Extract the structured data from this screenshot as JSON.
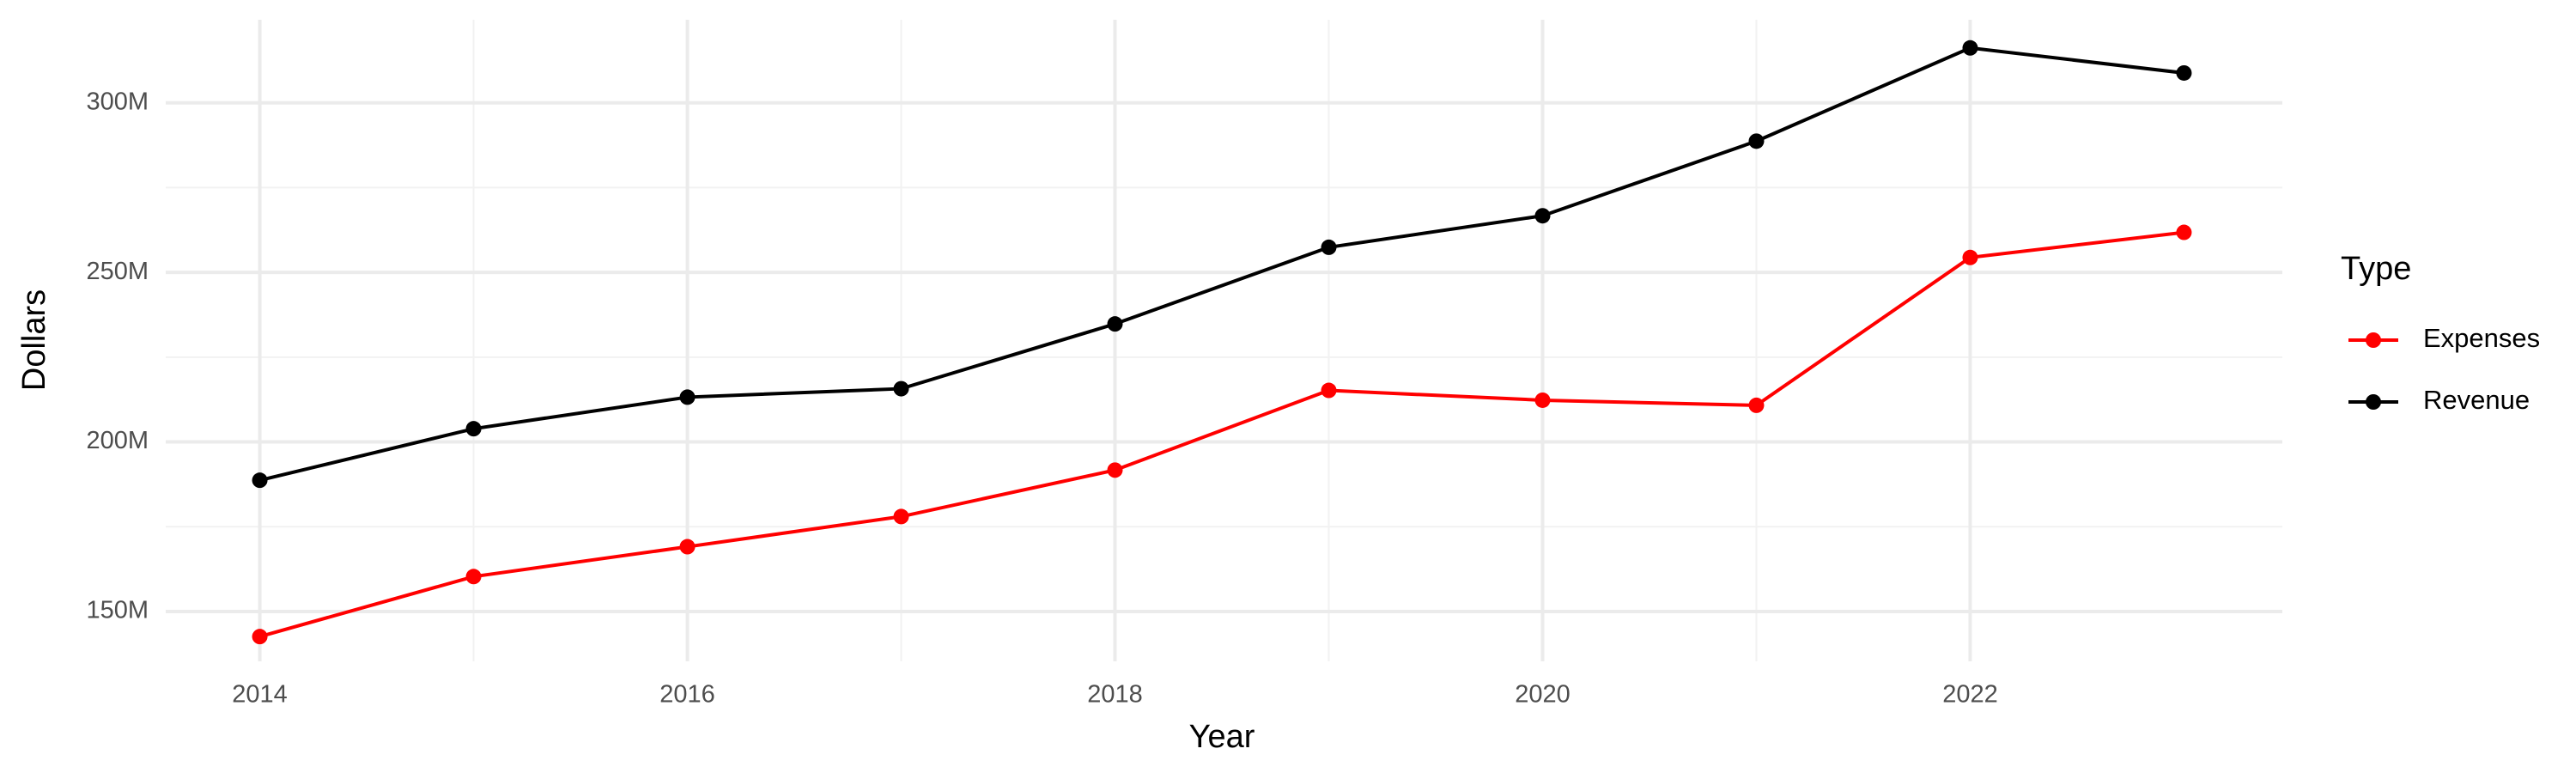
{
  "chart_data": {
    "type": "line",
    "x_label": "Year",
    "y_label": "Dollars",
    "legend_title": "Type",
    "x": [
      2014,
      2015,
      2016,
      2017,
      2018,
      2019,
      2020,
      2021,
      2022,
      2023
    ],
    "series": [
      {
        "name": "Expenses",
        "color": "#ff0000",
        "values": [
          142600000,
          160300000,
          169100000,
          178000000,
          191700000,
          215200000,
          212300000,
          210800000,
          254400000,
          261800000
        ]
      },
      {
        "name": "Revenue",
        "color": "#000000",
        "values": [
          188700000,
          203900000,
          213200000,
          215700000,
          234800000,
          257400000,
          266700000,
          288700000,
          316200000,
          308800000
        ]
      }
    ],
    "xlim": [
      2013.56,
      2023.46
    ],
    "xticks": [
      2014,
      2016,
      2018,
      2020,
      2022
    ],
    "ylim": [
      135300000,
      324500000
    ],
    "yticks": [
      {
        "value": 150000000,
        "label": "150M"
      },
      {
        "value": 200000000,
        "label": "200M"
      },
      {
        "value": 250000000,
        "label": "250M"
      },
      {
        "value": 300000000,
        "label": "300M"
      }
    ],
    "grid": true,
    "legend_position": "right"
  }
}
